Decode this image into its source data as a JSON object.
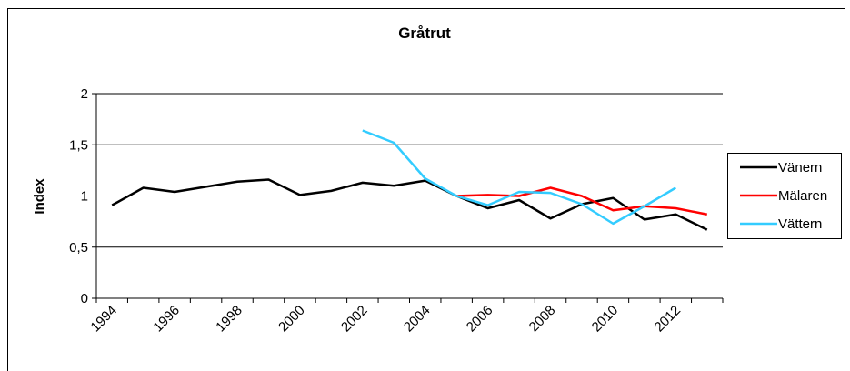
{
  "chart_data": {
    "type": "line",
    "title": "Gråtrut",
    "y_label": "Index",
    "categories": [
      "1994",
      null,
      "1996",
      null,
      "1998",
      null,
      "2000",
      null,
      "2002",
      null,
      "2004",
      null,
      "2006",
      null,
      "2008",
      null,
      "2010",
      null,
      "2012",
      null
    ],
    "series": [
      {
        "name": "Vänern",
        "color": "#000000",
        "values": [
          0.91,
          1.08,
          1.04,
          1.09,
          1.14,
          1.16,
          1.01,
          1.05,
          1.13,
          1.1,
          1.15,
          1.0,
          0.88,
          0.96,
          0.78,
          0.92,
          0.98,
          0.77,
          0.82,
          0.67
        ]
      },
      {
        "name": "Mälaren",
        "color": "#ff0000",
        "values": [
          null,
          null,
          null,
          null,
          null,
          null,
          null,
          null,
          null,
          null,
          null,
          1.0,
          1.01,
          1.0,
          1.08,
          1.0,
          0.86,
          0.9,
          0.88,
          0.82
        ]
      },
      {
        "name": "Vättern",
        "color": "#33ccff",
        "values": [
          null,
          null,
          null,
          null,
          null,
          null,
          null,
          null,
          1.64,
          1.52,
          1.17,
          1.0,
          0.91,
          1.04,
          1.03,
          0.92,
          0.73,
          0.9,
          1.08,
          null
        ]
      }
    ],
    "ylim": [
      0,
      2
    ],
    "yticks": [
      0,
      {
        "value": 0.5,
        "label": "0,5"
      },
      1,
      {
        "value": 1.5,
        "label": "1,5"
      },
      2
    ],
    "grid": true,
    "legend": "right"
  }
}
